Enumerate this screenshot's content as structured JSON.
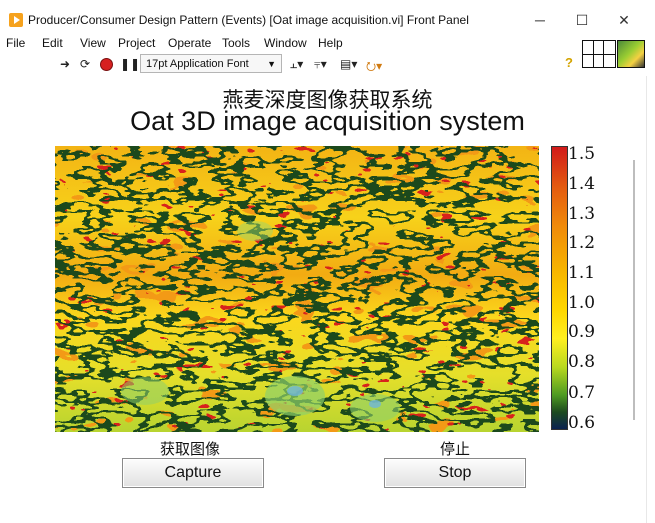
{
  "window": {
    "title": "Producer/Consumer Design Pattern (Events) [Oat image acquisition.vi] Front Panel",
    "controls": {
      "minimize": "─",
      "maximize": "☐",
      "close": "✕"
    }
  },
  "menu": [
    "File",
    "Edit",
    "View",
    "Project",
    "Operate",
    "Tools",
    "Window",
    "Help"
  ],
  "toolbar": {
    "run_icon": "run-arrow-icon",
    "font_selector": "17pt Application Font",
    "help_icon": "?"
  },
  "panel": {
    "title_cn": "燕麦深度图像获取系统",
    "title_en": "Oat 3D image acquisition system"
  },
  "colorbar": {
    "ticks": [
      "1.5",
      "1.4",
      "1.3",
      "1.2",
      "1.1",
      "1.0",
      "0.9",
      "0.8",
      "0.7",
      "0.6"
    ],
    "range": [
      0.6,
      1.5
    ],
    "colors": [
      "#d11a1a",
      "#f08a0a",
      "#ffd700",
      "#b9d920",
      "#4e9a22",
      "#1d4a1f",
      "#0b2250"
    ]
  },
  "controls": {
    "capture": {
      "label_cn": "获取图像",
      "button": "Capture"
    },
    "stop": {
      "label_cn": "停止",
      "button": "Stop"
    }
  }
}
